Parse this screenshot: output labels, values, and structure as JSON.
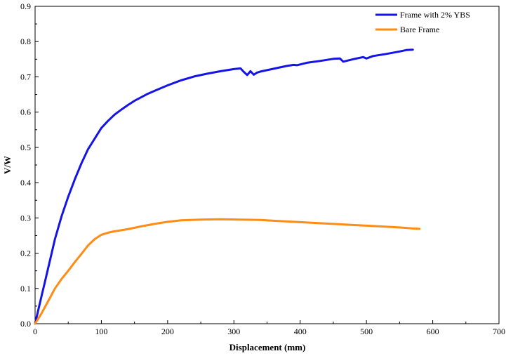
{
  "chart_data": {
    "type": "line",
    "title": "",
    "xlabel": "Displacement (mm)",
    "ylabel": "V/W",
    "xlim": [
      0,
      700
    ],
    "ylim": [
      0,
      0.9
    ],
    "x_ticks": [
      0,
      100,
      200,
      300,
      400,
      500,
      600,
      700
    ],
    "y_ticks": [
      0.0,
      0.1,
      0.2,
      0.3,
      0.4,
      0.5,
      0.6,
      0.7,
      0.8,
      0.9
    ],
    "x_tick_labels": [
      "0",
      "100",
      "200",
      "300",
      "400",
      "500",
      "600",
      "700"
    ],
    "y_tick_labels": [
      "0.0",
      "0.1",
      "0.2",
      "0.3",
      "0.4",
      "0.5",
      "0.6",
      "0.7",
      "0.8",
      "0.9"
    ],
    "grid": false,
    "legend_position": "top-right",
    "series": [
      {
        "name": "Frame with 2% YBS",
        "color": "#1414e6",
        "points": [
          [
            0,
            0.0
          ],
          [
            5,
            0.04
          ],
          [
            10,
            0.08
          ],
          [
            15,
            0.12
          ],
          [
            20,
            0.16
          ],
          [
            25,
            0.2
          ],
          [
            30,
            0.24
          ],
          [
            40,
            0.305
          ],
          [
            50,
            0.36
          ],
          [
            60,
            0.41
          ],
          [
            70,
            0.455
          ],
          [
            80,
            0.495
          ],
          [
            90,
            0.525
          ],
          [
            100,
            0.555
          ],
          [
            110,
            0.575
          ],
          [
            120,
            0.593
          ],
          [
            130,
            0.607
          ],
          [
            140,
            0.62
          ],
          [
            150,
            0.632
          ],
          [
            160,
            0.642
          ],
          [
            170,
            0.652
          ],
          [
            180,
            0.66
          ],
          [
            190,
            0.668
          ],
          [
            200,
            0.676
          ],
          [
            220,
            0.69
          ],
          [
            240,
            0.701
          ],
          [
            260,
            0.709
          ],
          [
            280,
            0.716
          ],
          [
            300,
            0.722
          ],
          [
            310,
            0.724
          ],
          [
            315,
            0.714
          ],
          [
            320,
            0.705
          ],
          [
            325,
            0.716
          ],
          [
            330,
            0.706
          ],
          [
            335,
            0.712
          ],
          [
            340,
            0.715
          ],
          [
            360,
            0.723
          ],
          [
            380,
            0.731
          ],
          [
            390,
            0.734
          ],
          [
            395,
            0.733
          ],
          [
            410,
            0.74
          ],
          [
            430,
            0.745
          ],
          [
            450,
            0.751
          ],
          [
            460,
            0.752
          ],
          [
            465,
            0.743
          ],
          [
            480,
            0.75
          ],
          [
            495,
            0.756
          ],
          [
            500,
            0.752
          ],
          [
            510,
            0.759
          ],
          [
            530,
            0.765
          ],
          [
            550,
            0.772
          ],
          [
            560,
            0.776
          ],
          [
            570,
            0.777
          ]
        ]
      },
      {
        "name": "Bare Frame",
        "color": "#ff8c14",
        "points": [
          [
            0,
            0.0
          ],
          [
            10,
            0.03
          ],
          [
            20,
            0.065
          ],
          [
            30,
            0.1
          ],
          [
            40,
            0.127
          ],
          [
            50,
            0.15
          ],
          [
            60,
            0.175
          ],
          [
            70,
            0.198
          ],
          [
            80,
            0.222
          ],
          [
            90,
            0.24
          ],
          [
            100,
            0.252
          ],
          [
            110,
            0.258
          ],
          [
            120,
            0.262
          ],
          [
            140,
            0.268
          ],
          [
            160,
            0.276
          ],
          [
            180,
            0.283
          ],
          [
            200,
            0.289
          ],
          [
            220,
            0.293
          ],
          [
            250,
            0.295
          ],
          [
            280,
            0.296
          ],
          [
            310,
            0.295
          ],
          [
            340,
            0.294
          ],
          [
            370,
            0.291
          ],
          [
            400,
            0.288
          ],
          [
            430,
            0.285
          ],
          [
            460,
            0.282
          ],
          [
            490,
            0.279
          ],
          [
            520,
            0.276
          ],
          [
            550,
            0.273
          ],
          [
            570,
            0.27
          ],
          [
            580,
            0.269
          ]
        ]
      }
    ]
  }
}
